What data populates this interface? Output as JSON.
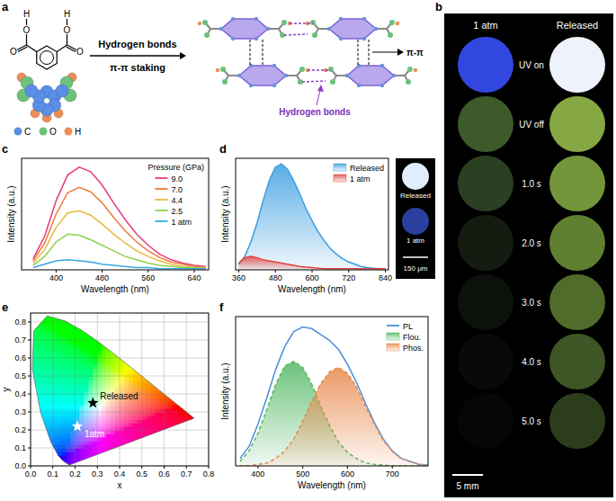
{
  "panel_a": {
    "panel_label": "a",
    "atom_labels": [
      "H",
      "O",
      "O",
      "O",
      "O",
      "H"
    ],
    "element_legend": [
      {
        "label": "C",
        "color": "#5b8ee6"
      },
      {
        "label": "O",
        "color": "#6cc27a"
      },
      {
        "label": "H",
        "color": "#ee8d5a"
      }
    ],
    "arrow_labels": [
      "Hydrogen bonds",
      "π-π staking"
    ],
    "annotations": [
      "π-π",
      "Hydrogen bonds"
    ]
  },
  "panel_b": {
    "panel_label": "b",
    "columns": [
      "1 atm",
      "Released"
    ],
    "rows": [
      {
        "label": "UV on",
        "colors": [
          "#3247e0",
          "#eef3fb"
        ]
      },
      {
        "label": "UV off",
        "colors": [
          "#3d5a2a",
          "#86a844"
        ]
      },
      {
        "label": "1.0 s",
        "colors": [
          "#2b3f22",
          "#73963a"
        ]
      },
      {
        "label": "2.0 s",
        "colors": [
          "#141c12",
          "#5f8031"
        ]
      },
      {
        "label": "3.0 s",
        "colors": [
          "#0d110c",
          "#4f6c2b"
        ]
      },
      {
        "label": "4.0 s",
        "colors": [
          "#080a08",
          "#3e5525"
        ]
      },
      {
        "label": "5.0 s",
        "colors": [
          "#050605",
          "#2c3d1c"
        ]
      }
    ],
    "scale_bar": "5 mm"
  },
  "chart_data": [
    {
      "type": "line",
      "panel_label": "c",
      "x_label": "Wavelength (nm)",
      "y_label": "Intensity (a.u.)",
      "x": [
        360,
        380,
        400,
        420,
        440,
        460,
        480,
        500,
        520,
        540,
        560,
        580,
        600,
        620,
        640,
        660
      ],
      "xlim": [
        340,
        665
      ],
      "xticks": [
        400,
        480,
        560,
        640
      ],
      "ylim": [
        0,
        1
      ],
      "tick_labels": "x",
      "legend": "top-right",
      "legend_title": "Pressure (GPa)",
      "series": [
        {
          "name": "9.0",
          "color": "#e6397f",
          "values": [
            0.1,
            0.3,
            0.62,
            0.85,
            0.92,
            0.88,
            0.76,
            0.6,
            0.45,
            0.32,
            0.22,
            0.14,
            0.09,
            0.06,
            0.04,
            0.03
          ]
        },
        {
          "name": "7.0",
          "color": "#ef7b3c",
          "values": [
            0.08,
            0.24,
            0.5,
            0.69,
            0.74,
            0.7,
            0.6,
            0.47,
            0.35,
            0.25,
            0.17,
            0.11,
            0.07,
            0.05,
            0.03,
            0.02
          ]
        },
        {
          "name": "4.4",
          "color": "#e9b83a",
          "values": [
            0.06,
            0.18,
            0.38,
            0.51,
            0.53,
            0.49,
            0.41,
            0.32,
            0.24,
            0.17,
            0.12,
            0.08,
            0.05,
            0.03,
            0.02,
            0.02
          ]
        },
        {
          "name": "2.5",
          "color": "#8ed14f",
          "values": [
            0.04,
            0.12,
            0.25,
            0.32,
            0.31,
            0.27,
            0.22,
            0.17,
            0.12,
            0.09,
            0.06,
            0.04,
            0.03,
            0.02,
            0.02,
            0.01
          ]
        },
        {
          "name": "1 atm",
          "color": "#35a7e0",
          "values": [
            0.02,
            0.05,
            0.08,
            0.09,
            0.08,
            0.07,
            0.05,
            0.04,
            0.03,
            0.02,
            0.02,
            0.01,
            0.01,
            0.01,
            0.01,
            0.01
          ]
        }
      ]
    },
    {
      "type": "area",
      "panel_label": "d",
      "x_label": "Wavelength (nm)",
      "y_label": "Intensity (a.u.)",
      "x": [
        360,
        380,
        400,
        420,
        440,
        460,
        480,
        500,
        520,
        540,
        560,
        580,
        600,
        620,
        640,
        660,
        680,
        700,
        720,
        740,
        760,
        780,
        800,
        820,
        840
      ],
      "xlim": [
        350,
        850
      ],
      "xticks": [
        360,
        480,
        600,
        720,
        840
      ],
      "ylim": [
        0,
        1
      ],
      "tick_labels": "x",
      "legend": "top-right",
      "series": [
        {
          "name": "Released",
          "color": "#3a9ee0",
          "values": [
            0.05,
            0.12,
            0.25,
            0.42,
            0.62,
            0.8,
            0.92,
            0.95,
            0.9,
            0.8,
            0.68,
            0.55,
            0.44,
            0.34,
            0.26,
            0.19,
            0.14,
            0.1,
            0.07,
            0.05,
            0.03,
            0.02,
            0.015,
            0.01,
            0.01
          ]
        },
        {
          "name": "1 atm",
          "color": "#e0443c",
          "values": [
            0.06,
            0.11,
            0.12,
            0.11,
            0.09,
            0.08,
            0.07,
            0.06,
            0.05,
            0.04,
            0.03,
            0.025,
            0.02,
            0.015,
            0.01,
            0.01,
            0.01,
            0.01,
            0.01,
            0.01,
            0.01,
            0.01,
            0.01,
            0.01,
            0.01
          ]
        }
      ],
      "inset": {
        "labels": [
          "Released",
          "1 atm"
        ],
        "colors": [
          "#dfeefa",
          "#2a3f9e"
        ],
        "scale_bar": "150 μm"
      }
    },
    {
      "type": "scatter",
      "panel_label": "e",
      "x_label": "x",
      "y_label": "y",
      "xlim": [
        0,
        0.8
      ],
      "ylim": [
        0,
        0.85
      ],
      "xticks": [
        {
          "value": 0,
          "label": "0.0"
        },
        0.1,
        0.2,
        0.3,
        0.4,
        0.5,
        0.6,
        0.7,
        0.8
      ],
      "yticks": [
        {
          "value": 0,
          "label": "0.0"
        },
        0.1,
        0.2,
        0.3,
        0.4,
        0.5,
        0.6,
        0.7,
        0.8
      ],
      "grid": true,
      "locus": {
        "x": [
          0.1741,
          0.144,
          0.1241,
          0.0913,
          0.0454,
          0.0082,
          0.0139,
          0.0743,
          0.1547,
          0.2296,
          0.3016,
          0.3731,
          0.4441,
          0.5125,
          0.5752,
          0.627,
          0.6915,
          0.719,
          0.7347
        ],
        "y": [
          0.005,
          0.0297,
          0.0578,
          0.1327,
          0.295,
          0.5384,
          0.7502,
          0.8338,
          0.8059,
          0.7543,
          0.6923,
          0.6245,
          0.5547,
          0.4866,
          0.4242,
          0.3725,
          0.3083,
          0.2809,
          0.2653
        ]
      },
      "series": [
        {
          "name": "Released",
          "color": "#000000",
          "marker": "star",
          "x": [
            0.28
          ],
          "values": [
            0.35
          ]
        },
        {
          "name": "1atm",
          "color": "#ffffff",
          "marker": "star",
          "x": [
            0.21
          ],
          "values": [
            0.22
          ]
        }
      ]
    },
    {
      "type": "line",
      "panel_label": "f",
      "x_label": "Wavelength (nm)",
      "y_label": "Intensity (a.u.)",
      "x": [
        360,
        380,
        400,
        420,
        440,
        460,
        480,
        500,
        520,
        540,
        560,
        580,
        600,
        620,
        640,
        660,
        680,
        700,
        720,
        740,
        760,
        780
      ],
      "xlim": [
        350,
        780
      ],
      "xticks": [
        400,
        500,
        600,
        700
      ],
      "ylim": [
        0,
        1
      ],
      "tick_labels": "x",
      "legend": "top-right",
      "series": [
        {
          "name": "PL",
          "color": "#4a8fd8",
          "type": "line",
          "values": [
            0.05,
            0.13,
            0.28,
            0.46,
            0.65,
            0.8,
            0.9,
            0.93,
            0.92,
            0.88,
            0.84,
            0.78,
            0.68,
            0.56,
            0.42,
            0.29,
            0.18,
            0.1,
            0.05,
            0.03,
            0.01,
            0.005
          ]
        },
        {
          "name": "Flou.",
          "color": "#4fb862",
          "type": "area",
          "line_style": "dashed",
          "values": [
            0.03,
            0.1,
            0.22,
            0.38,
            0.55,
            0.67,
            0.7,
            0.66,
            0.55,
            0.4,
            0.27,
            0.16,
            0.09,
            0.05,
            0.02,
            0.01,
            0.005,
            0,
            0,
            0,
            0,
            0
          ]
        },
        {
          "name": "Phos.",
          "color": "#e8874a",
          "type": "area",
          "line_style": "dashed",
          "values": [
            0,
            0,
            0.01,
            0.02,
            0.05,
            0.1,
            0.18,
            0.3,
            0.43,
            0.55,
            0.63,
            0.66,
            0.62,
            0.53,
            0.4,
            0.28,
            0.17,
            0.1,
            0.05,
            0.03,
            0.01,
            0.005
          ]
        }
      ]
    }
  ]
}
